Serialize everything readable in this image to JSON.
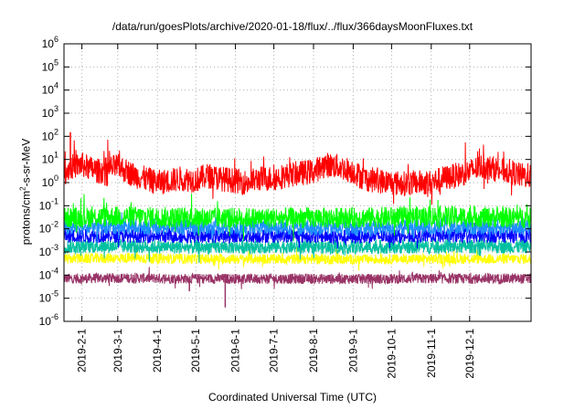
{
  "chart_data": {
    "type": "line",
    "title": "/data/run/goesPlots/archive/2020-01-18/flux/../flux/366daysMoonFluxes.txt",
    "xlabel": "Coordinated Universal Time (UTC)",
    "ylabel": "protons/cm2-s-sr-MeV",
    "ylabel_main": "protons/cm",
    "ylabel_sup": "2",
    "ylabel_rest": "-s-sr-MeV",
    "yscale": "log",
    "ylim": [
      1e-06,
      1000000.0
    ],
    "xlim": [
      "2019-01-18",
      "2020-01-18"
    ],
    "grid": true,
    "legend": "none",
    "x_ticks": [
      {
        "label": "2019-2-1",
        "date": "2019-02-01"
      },
      {
        "label": "2019-3-1",
        "date": "2019-03-01"
      },
      {
        "label": "2019-4-1",
        "date": "2019-04-01"
      },
      {
        "label": "2019-5-1",
        "date": "2019-05-01"
      },
      {
        "label": "2019-6-1",
        "date": "2019-06-01"
      },
      {
        "label": "2019-7-1",
        "date": "2019-07-01"
      },
      {
        "label": "2019-8-1",
        "date": "2019-08-01"
      },
      {
        "label": "2019-9-1",
        "date": "2019-09-01"
      },
      {
        "label": "2019-10-1",
        "date": "2019-10-01"
      },
      {
        "label": "2019-11-1",
        "date": "2019-11-01"
      },
      {
        "label": "2019-12-1",
        "date": "2019-12-01"
      }
    ],
    "y_ticks": [
      {
        "value": 1e-06,
        "base": "10",
        "exp": "-6"
      },
      {
        "value": 1e-05,
        "base": "10",
        "exp": "-5"
      },
      {
        "value": 0.0001,
        "base": "10",
        "exp": "-4"
      },
      {
        "value": 0.001,
        "base": "10",
        "exp": "-3"
      },
      {
        "value": 0.01,
        "base": "10",
        "exp": "-2"
      },
      {
        "value": 0.1,
        "base": "10",
        "exp": "-1"
      },
      {
        "value": 1.0,
        "base": "10",
        "exp": "0"
      },
      {
        "value": 10.0,
        "base": "10",
        "exp": "1"
      },
      {
        "value": 100.0,
        "base": "10",
        "exp": "2"
      },
      {
        "value": 1000.0,
        "base": "10",
        "exp": "3"
      },
      {
        "value": 10000.0,
        "base": "10",
        "exp": "4"
      },
      {
        "value": 100000.0,
        "base": "10",
        "exp": "5"
      },
      {
        "value": 1000000.0,
        "base": "10",
        "exp": "6"
      }
    ],
    "series": [
      {
        "color": "#ff0000",
        "x": [
          "2019-01-18",
          "2019-01-25",
          "2019-02-01",
          "2019-02-08",
          "2019-02-15",
          "2019-02-22",
          "2019-03-01",
          "2019-03-08",
          "2019-03-15",
          "2019-03-22",
          "2019-04-01",
          "2019-04-10",
          "2019-04-20",
          "2019-05-01",
          "2019-05-10",
          "2019-05-20",
          "2019-06-01",
          "2019-06-10",
          "2019-06-20",
          "2019-07-01",
          "2019-07-10",
          "2019-07-20",
          "2019-08-01",
          "2019-08-10",
          "2019-08-20",
          "2019-09-01",
          "2019-09-10",
          "2019-09-20",
          "2019-10-01",
          "2019-10-10",
          "2019-10-20",
          "2019-11-01",
          "2019-11-10",
          "2019-11-20",
          "2019-12-01",
          "2019-12-10",
          "2019-12-20",
          "2020-01-01",
          "2020-01-10",
          "2020-01-18"
        ],
        "y": [
          3,
          5,
          6,
          4,
          3,
          4,
          5,
          3,
          2,
          1.5,
          1,
          1.2,
          1.5,
          1.3,
          2,
          1.5,
          1.2,
          1,
          1.5,
          1.5,
          2,
          2.5,
          3,
          6,
          5,
          3,
          1.5,
          1.2,
          1,
          0.9,
          1,
          1,
          1.5,
          2,
          3,
          5,
          4,
          3,
          2,
          2
        ]
      },
      {
        "color": "#00ff00",
        "x": [
          "2019-01-18",
          "2019-03-01",
          "2019-05-01",
          "2019-07-01",
          "2019-09-01",
          "2019-11-01",
          "2020-01-18"
        ],
        "y": [
          0.03,
          0.035,
          0.03,
          0.03,
          0.03,
          0.035,
          0.03
        ]
      },
      {
        "color": "#1e90ff",
        "x": [
          "2019-01-18",
          "2019-03-01",
          "2019-05-01",
          "2019-07-01",
          "2019-09-01",
          "2019-11-01",
          "2020-01-18"
        ],
        "y": [
          0.012,
          0.013,
          0.012,
          0.012,
          0.011,
          0.012,
          0.012
        ]
      },
      {
        "color": "#0000ff",
        "x": [
          "2019-01-18",
          "2019-03-01",
          "2019-05-01",
          "2019-07-01",
          "2019-09-01",
          "2019-11-01",
          "2020-01-18"
        ],
        "y": [
          0.005,
          0.005,
          0.0048,
          0.005,
          0.0046,
          0.005,
          0.005
        ]
      },
      {
        "color": "#00c0a0",
        "x": [
          "2019-01-18",
          "2019-03-01",
          "2019-05-01",
          "2019-07-01",
          "2019-09-01",
          "2019-11-01",
          "2020-01-18"
        ],
        "y": [
          0.0017,
          0.0018,
          0.0016,
          0.0017,
          0.0016,
          0.0017,
          0.0017
        ]
      },
      {
        "color": "#ffff00",
        "x": [
          "2019-01-18",
          "2019-03-01",
          "2019-05-01",
          "2019-07-01",
          "2019-09-01",
          "2019-11-01",
          "2020-01-18"
        ],
        "y": [
          0.0005,
          0.00055,
          0.0005,
          0.0005,
          0.00048,
          0.0005,
          0.0005
        ]
      },
      {
        "color": "#993366",
        "x": [
          "2019-01-18",
          "2019-03-01",
          "2019-05-01",
          "2019-07-01",
          "2019-09-01",
          "2019-11-01",
          "2020-01-18"
        ],
        "y": [
          7e-05,
          7.5e-05,
          7e-05,
          7e-05,
          6.8e-05,
          7e-05,
          7e-05
        ]
      }
    ],
    "annotations": [
      {
        "date": "2019-01-23",
        "value": 150,
        "series_color": "#ff0000",
        "note": "spike"
      },
      {
        "date": "2019-05-24",
        "value": 4e-06,
        "series_color": "#993366",
        "note": "dip"
      },
      {
        "date": "2019-04-26",
        "value": 2e-05,
        "series_color": "#993366",
        "note": "dip"
      }
    ]
  }
}
